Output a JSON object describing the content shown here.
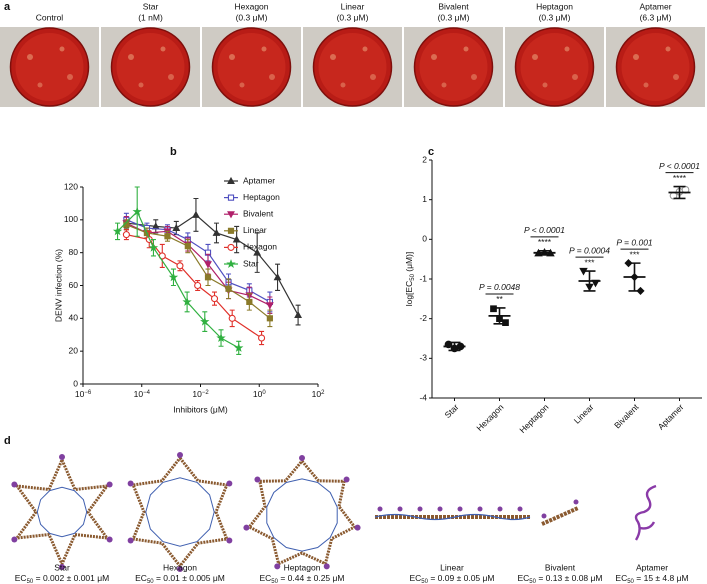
{
  "panel_a": {
    "label": "a",
    "plates": [
      {
        "name": "Control"
      },
      {
        "name": "Star",
        "dose": "(1 nM)"
      },
      {
        "name": "Hexagon",
        "dose": "(0.3 μM)"
      },
      {
        "name": "Linear",
        "dose": "(0.3 μM)"
      },
      {
        "name": "Bivalent",
        "dose": "(0.3 μM)"
      },
      {
        "name": "Heptagon",
        "dose": "(0.3 μM)"
      },
      {
        "name": "Aptamer",
        "dose": "(6.3 μM)"
      }
    ]
  },
  "chart_data": [
    {
      "type": "line",
      "label": "b",
      "ylabel": "DENV infection (%)",
      "xlabel": "Inhibitors (μM)",
      "xlog": true,
      "xlim": [
        1e-06,
        100
      ],
      "xticks": [
        {
          "value": 1e-06,
          "label": "10",
          "exponent": "−6"
        },
        {
          "value": 0.0001,
          "label": "10",
          "exponent": "−4"
        },
        {
          "value": 0.01,
          "label": "10",
          "exponent": "−2"
        },
        {
          "value": 1,
          "label": "10",
          "exponent": "0"
        },
        {
          "value": 100,
          "label": "10",
          "exponent": "2"
        }
      ],
      "ylim": [
        0,
        120
      ],
      "yticks": [
        0,
        20,
        40,
        60,
        80,
        100,
        120
      ],
      "series": [
        {
          "name": "Aptamer",
          "color": "#333333",
          "marker": "triangle",
          "x": [
            3e-05,
            0.0003,
            0.0015,
            0.007,
            0.035,
            0.17,
            0.85,
            4.2,
            21
          ],
          "values": [
            98,
            96,
            95,
            103,
            92,
            88,
            80,
            65,
            42
          ],
          "errors": [
            3,
            4,
            4,
            10,
            6,
            8,
            12,
            8,
            6
          ]
        },
        {
          "name": "Heptagon",
          "color": "#5050c0",
          "marker": "square-open",
          "x": [
            3e-05,
            0.00015,
            0.00075,
            0.0037,
            0.018,
            0.09,
            0.46,
            2.3
          ],
          "values": [
            100,
            95,
            94,
            88,
            80,
            62,
            57,
            50
          ],
          "errors": [
            4,
            3,
            3,
            4,
            5,
            5,
            4,
            6
          ]
        },
        {
          "name": "Bivalent",
          "color": "#b0206a",
          "marker": "triangle-down",
          "x": [
            3e-05,
            0.00015,
            0.00075,
            0.0037,
            0.018,
            0.09,
            0.46,
            2.3
          ],
          "values": [
            98,
            92,
            93,
            85,
            73,
            57,
            54,
            48
          ],
          "errors": [
            4,
            3,
            3,
            4,
            6,
            5,
            5,
            5
          ]
        },
        {
          "name": "Linear",
          "color": "#8a7a2a",
          "marker": "square",
          "x": [
            3e-05,
            0.00015,
            0.00075,
            0.0037,
            0.018,
            0.09,
            0.46,
            2.3
          ],
          "values": [
            97,
            92,
            90,
            84,
            65,
            58,
            50,
            40
          ],
          "errors": [
            3,
            3,
            3,
            4,
            5,
            6,
            5,
            5
          ]
        },
        {
          "name": "Hexagon",
          "color": "#e0302a",
          "marker": "circle-open",
          "x": [
            3e-05,
            0.00018,
            0.0005,
            0.002,
            0.008,
            0.03,
            0.12,
            1.2
          ],
          "values": [
            91,
            88,
            78,
            72,
            60,
            52,
            40,
            28
          ],
          "errors": [
            3,
            5,
            7,
            3,
            3,
            4,
            5,
            4
          ]
        },
        {
          "name": "Star",
          "color": "#30b040",
          "marker": "star",
          "x": [
            1.5e-05,
            7e-05,
            0.00025,
            0.0012,
            0.0035,
            0.014,
            0.05,
            0.2
          ],
          "values": [
            93,
            105,
            83,
            65,
            50,
            38,
            28,
            22
          ],
          "errors": [
            5,
            15,
            5,
            5,
            6,
            6,
            5,
            4
          ]
        }
      ]
    },
    {
      "type": "dot",
      "label": "c",
      "ylabel": "log[EC",
      "ylabel_sub": "50",
      "ylabel_end": " (μM)]",
      "categories": [
        "Star",
        "Hexagon",
        "Heptagon",
        "Linear",
        "Bivalent",
        "Aptamer"
      ],
      "markers": [
        "circle",
        "square",
        "triangle",
        "triangle-down",
        "diamond",
        "circle-open"
      ],
      "colors": [
        "#111111",
        "#111111",
        "#111111",
        "#111111",
        "#111111",
        "#999999"
      ],
      "points": [
        [
          -2.65,
          -2.75,
          -2.7
        ],
        [
          -1.75,
          -2.0,
          -2.1
        ],
        [
          -0.35,
          -0.33,
          -0.35
        ],
        [
          -0.8,
          -1.2,
          -1.1
        ],
        [
          -0.6,
          -0.95,
          -1.3
        ],
        [
          1.1,
          1.2,
          1.25
        ]
      ],
      "means": [
        -2.7,
        -1.93,
        -0.34,
        -1.05,
        -0.95,
        1.18
      ],
      "sds": [
        0.1,
        0.2,
        0.05,
        0.25,
        0.35,
        0.15
      ],
      "comparisons": [
        {
          "category": 1,
          "p": "P = 0.0048",
          "stars": "**"
        },
        {
          "category": 2,
          "p": "P < 0.0001",
          "stars": "****"
        },
        {
          "category": 3,
          "p": "P = 0.0004",
          "stars": "***"
        },
        {
          "category": 4,
          "p": "P = 0.001",
          "stars": "***"
        },
        {
          "category": 5,
          "p": "P < 0.0001",
          "stars": "****"
        }
      ],
      "ylim": [
        -4,
        2
      ],
      "yticks": [
        -4,
        -3,
        -2,
        -1,
        0,
        1,
        2
      ]
    }
  ],
  "panel_d": {
    "label": "d",
    "structures": [
      {
        "name": "Star",
        "ec_prefix": "EC",
        "ec_sub": "50",
        "ec_value": " = 0.002 ± 0.001 μM"
      },
      {
        "name": "Hexagon",
        "ec_prefix": "EC",
        "ec_sub": "50",
        "ec_value": " = 0.01 ± 0.005 μM"
      },
      {
        "name": "Heptagon",
        "ec_prefix": "EC",
        "ec_sub": "50",
        "ec_value": " = 0.44 ± 0.25 μM"
      },
      {
        "name": "Linear",
        "ec_prefix": "EC",
        "ec_sub": "50",
        "ec_value": " = 0.09 ± 0.05 μM"
      },
      {
        "name": "Bivalent",
        "ec_prefix": "EC",
        "ec_sub": "50",
        "ec_value": " = 0.13 ± 0.08 μM"
      },
      {
        "name": "Aptamer",
        "ec_prefix": "EC",
        "ec_sub": "50",
        "ec_value": " = 15 ± 4.8 μM"
      }
    ]
  }
}
